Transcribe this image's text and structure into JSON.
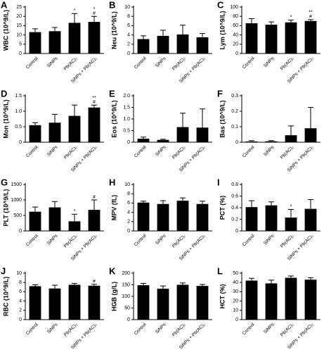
{
  "chart_data": [
    {
      "type": "bar",
      "label": "A",
      "ylabel": "WBC (10^9/L)",
      "categories": [
        "Control",
        "SiNPs",
        "Pb(AC)₂",
        "SiNPs + Pb(AC)₂"
      ],
      "values": [
        11.5,
        12,
        16.5,
        17
      ],
      "errors": [
        1.8,
        2,
        5,
        3
      ],
      "annotations": [
        [],
        [],
        [
          "*"
        ],
        [
          "#",
          "*"
        ]
      ],
      "color": "#000000",
      "ylim": [
        0,
        25
      ],
      "yticks": [
        0,
        5,
        10,
        15,
        20,
        25
      ]
    },
    {
      "type": "bar",
      "label": "B",
      "ylabel": "Neu (10^9/L)",
      "categories": [
        "Control",
        "SiNPs",
        "Pb(AC)₂",
        "SiNPs + Pb(AC)₂"
      ],
      "values": [
        3.1,
        3.8,
        4.1,
        3.5
      ],
      "errors": [
        0.7,
        1.2,
        2,
        0.8
      ],
      "annotations": [
        [],
        [],
        [],
        []
      ],
      "color": "#000000",
      "ylim": [
        0,
        10
      ],
      "yticks": [
        0,
        2,
        4,
        6,
        8,
        10
      ]
    },
    {
      "type": "bar",
      "label": "C",
      "ylabel": "Lym (10^9/L)",
      "categories": [
        "Control",
        "SiNPs",
        "Pb(AC)₂",
        "SiNPs + Pb(AC)₂"
      ],
      "values": [
        65,
        62,
        67,
        70
      ],
      "errors": [
        10,
        6,
        5,
        3
      ],
      "annotations": [
        [],
        [],
        [
          "*"
        ],
        [
          "#",
          "**"
        ]
      ],
      "color": "#000000",
      "ylim": [
        0,
        100
      ],
      "yticks": [
        0,
        20,
        40,
        60,
        80,
        100
      ]
    },
    {
      "type": "bar",
      "label": "D",
      "ylabel": "Mon (10^9/L)",
      "categories": [
        "Control",
        "SiNPs",
        "Pb(AC)₂",
        "SiNPs + Pb(AC)₂"
      ],
      "values": [
        0.55,
        0.63,
        0.85,
        1.12
      ],
      "errors": [
        0.08,
        0.27,
        0.35,
        0.08
      ],
      "annotations": [
        [],
        [],
        [],
        [
          "#",
          "**"
        ]
      ],
      "color": "#000000",
      "ylim": [
        0,
        1.5
      ],
      "yticks": [
        0,
        0.5,
        {
          "value": 1,
          "label": "1.0"
        },
        1.5
      ]
    },
    {
      "type": "bar",
      "label": "E",
      "ylabel": "Eos (10^9/L)",
      "categories": [
        "Control",
        "SiNPs",
        "Pb(AC)₂",
        "SiNPs + Pb(AC)₂"
      ],
      "values": [
        0.15,
        0.1,
        0.65,
        0.63
      ],
      "errors": [
        0.07,
        0.03,
        0.6,
        0.8
      ],
      "annotations": [
        [],
        [],
        [],
        []
      ],
      "color": "#000000",
      "ylim": [
        0,
        2
      ],
      "yticks": [
        0,
        0.5,
        {
          "value": 1,
          "label": "1.0"
        },
        1.5,
        {
          "value": 2,
          "label": "2.0"
        }
      ]
    },
    {
      "type": "bar",
      "label": "F",
      "ylabel": "Bas (10^9/L)",
      "categories": [
        "Control",
        "SiNPs",
        "Pb(AC)₂",
        "SiNPs + Pb(AC)₂"
      ],
      "values": [
        0.005,
        0.006,
        0.045,
        0.09
      ],
      "errors": [
        0.005,
        0.004,
        0.06,
        0.135
      ],
      "annotations": [
        [],
        [],
        [],
        []
      ],
      "color": "#000000",
      "ylim": [
        0,
        0.3
      ],
      "yticks": [
        0,
        0.1,
        0.2,
        0.3
      ]
    },
    {
      "type": "bar",
      "label": "G",
      "ylabel": "PLT (10^9/L)",
      "categories": [
        "Control",
        "SiNPs",
        "Pb(AC)₂",
        "SiNPs + Pb(AC)₂"
      ],
      "values": [
        620,
        760,
        310,
        680
      ],
      "errors": [
        150,
        190,
        230,
        320
      ],
      "annotations": [
        [],
        [],
        [
          "*"
        ],
        [
          "#"
        ]
      ],
      "color": "#000000",
      "ylim": [
        0,
        1500
      ],
      "yticks": [
        0,
        500,
        1000,
        1500
      ]
    },
    {
      "type": "bar",
      "label": "H",
      "ylabel": "MPV (fL)",
      "categories": [
        "Control",
        "SiNPs",
        "Pb(AC)₂",
        "SiNPs + Pb(AC)₂"
      ],
      "values": [
        6.1,
        5.8,
        6.5,
        5.8
      ],
      "errors": [
        0.3,
        0.7,
        0.6,
        0.6
      ],
      "annotations": [
        [],
        [],
        [],
        []
      ],
      "color": "#000000",
      "ylim": [
        0,
        10
      ],
      "yticks": [
        0,
        2,
        4,
        6,
        8,
        10
      ]
    },
    {
      "type": "bar",
      "label": "I",
      "ylabel": "PCT (%)",
      "categories": [
        "Control",
        "SiNPs",
        "Pb(AC)₂",
        "SiNPs + Pb(AC)₂"
      ],
      "values": [
        0.41,
        0.44,
        0.23,
        0.38
      ],
      "errors": [
        0.11,
        0.06,
        0.14,
        0.16
      ],
      "annotations": [
        [],
        [],
        [
          "*"
        ],
        []
      ],
      "color": "#000000",
      "ylim": [
        0,
        0.8
      ],
      "yticks": [
        0,
        0.2,
        0.4,
        0.6,
        0.8
      ]
    },
    {
      "type": "bar",
      "label": "J",
      "ylabel": "RBC (10^9/L)",
      "categories": [
        "Control",
        "SiNPs",
        "Pb(AC)₂",
        "SiNPs + Pb(AC)₂"
      ],
      "values": [
        7.2,
        6.7,
        7.5,
        7.3
      ],
      "errors": [
        0.3,
        0.7,
        0.3,
        0.3
      ],
      "annotations": [
        [],
        [],
        [],
        [
          "#"
        ]
      ],
      "color": "#000000",
      "ylim": [
        0,
        10
      ],
      "yticks": [
        0,
        2,
        4,
        6,
        8,
        10
      ]
    },
    {
      "type": "bar",
      "label": "K",
      "ylabel": "HGB (g/L)",
      "categories": [
        "Control",
        "SiNPs",
        "Pb(AC)₂",
        "SiNPs + Pb(AC)₂"
      ],
      "values": [
        148,
        133,
        150,
        145
      ],
      "errors": [
        8,
        12,
        8,
        6
      ],
      "annotations": [
        [],
        [],
        [],
        []
      ],
      "color": "#000000",
      "ylim": [
        0,
        200
      ],
      "yticks": [
        0,
        50,
        100,
        150,
        200
      ]
    },
    {
      "type": "bar",
      "label": "L",
      "ylabel": "HCT (%)",
      "categories": [
        "Control",
        "SiNPs",
        "Pb(AC)₂",
        "SiNPs + Pb(AC)₂"
      ],
      "values": [
        42,
        39,
        45,
        43
      ],
      "errors": [
        2.5,
        3.5,
        2,
        2
      ],
      "annotations": [
        [],
        [],
        [],
        []
      ],
      "color": "#000000",
      "ylim": [
        0,
        50
      ],
      "yticks": [
        0,
        10,
        20,
        30,
        40,
        50
      ]
    }
  ]
}
